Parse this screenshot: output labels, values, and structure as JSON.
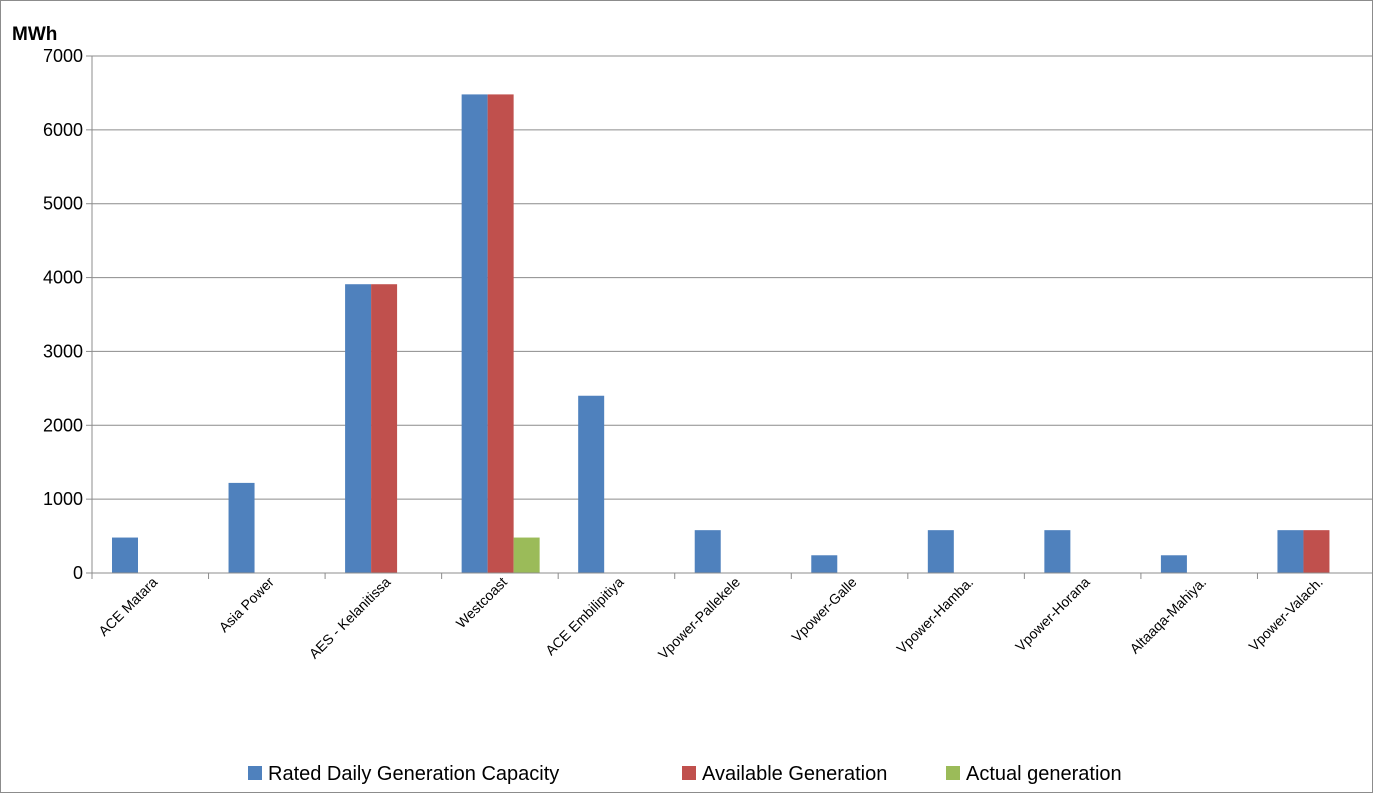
{
  "chart_data": {
    "type": "bar",
    "title": "",
    "unit_label": "MWh",
    "xlabel": "",
    "ylabel": "",
    "ylim": [
      0,
      7000
    ],
    "yticks": [
      0,
      1000,
      2000,
      3000,
      4000,
      5000,
      6000,
      7000
    ],
    "grid": true,
    "legend_position": "bottom",
    "categories": [
      "ACE Matara",
      "Asia Power",
      "AES - Kelanitissa",
      "Westcoast",
      "ACE Embilipitiya",
      "Vpower-Pallekele",
      "Vpower-Galle",
      "Vpower-Hamba.",
      "Vpower-Horana",
      "Altaaqa-Mahiya.",
      "Vpower-Valach."
    ],
    "series": [
      {
        "name": "Rated Daily Generation Capacity",
        "color": "#4f81bd",
        "values": [
          480,
          1220,
          3910,
          6480,
          2400,
          580,
          240,
          580,
          580,
          240,
          580
        ]
      },
      {
        "name": "Available Generation",
        "color": "#c0504d",
        "values": [
          0,
          0,
          3910,
          6480,
          0,
          0,
          0,
          0,
          0,
          0,
          580
        ]
      },
      {
        "name": "Actual generation",
        "color": "#9bbb59",
        "values": [
          0,
          0,
          0,
          480,
          0,
          0,
          0,
          0,
          0,
          0,
          0
        ]
      }
    ]
  }
}
